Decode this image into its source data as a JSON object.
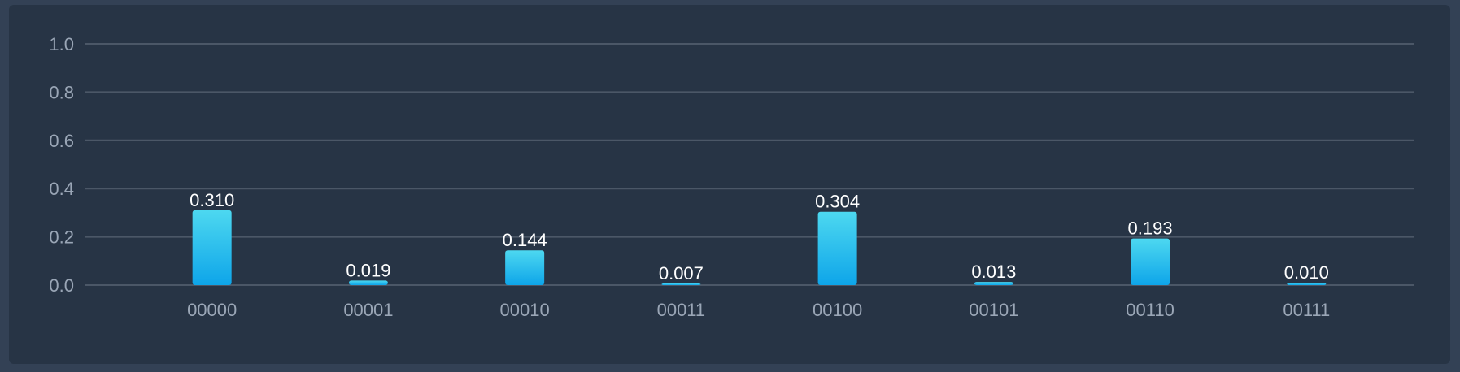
{
  "chart_data": {
    "type": "bar",
    "categories": [
      "00000",
      "00001",
      "00010",
      "00011",
      "00100",
      "00101",
      "00110",
      "00111"
    ],
    "values": [
      0.31,
      0.019,
      0.144,
      0.007,
      0.304,
      0.013,
      0.193,
      0.01
    ],
    "value_labels": [
      "0.310",
      "0.019",
      "0.144",
      "0.007",
      "0.304",
      "0.013",
      "0.193",
      "0.010"
    ],
    "yticks": [
      "0.0",
      "0.2",
      "0.4",
      "0.6",
      "0.8",
      "1.0"
    ],
    "ylim": [
      0,
      1
    ],
    "title": "",
    "xlabel": "",
    "ylabel": "",
    "grid": true,
    "legend": "none"
  },
  "colors": {
    "background": "#334155",
    "panel": "#273445",
    "grid": "#4b5767",
    "bar_top": "#4dd8f0",
    "bar_bottom": "#0ea5e9",
    "label": "#9aa6b6",
    "data_label": "#ffffff"
  }
}
